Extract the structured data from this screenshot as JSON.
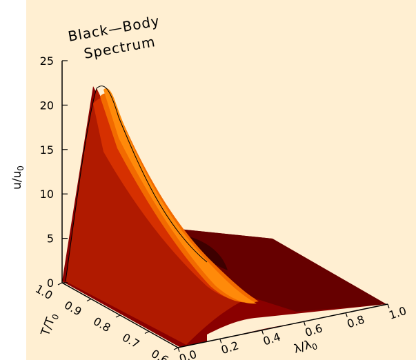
{
  "chart_data": {
    "type": "surface",
    "title": [
      "Black—Body",
      "Spectrum"
    ],
    "zlabel": "u/u",
    "zlabel_sub": "0",
    "xlabel": "λ/λ",
    "xlabel_sub": "0",
    "ylabel": "T/T",
    "ylabel_sub": "0",
    "zlim": [
      0,
      25
    ],
    "z_ticks": [
      "0",
      "5",
      "10",
      "15",
      "20",
      "25"
    ],
    "xlim": [
      0.0,
      1.0
    ],
    "x_ticks": [
      "0.0",
      "0.2",
      "0.4",
      "0.6",
      "0.8",
      "1.0"
    ],
    "ylim": [
      0.6,
      1.0
    ],
    "y_ticks": [
      "0.6",
      "0.7",
      "0.8",
      "0.9",
      "1.0"
    ],
    "peak_value": 22,
    "contour_colors": [
      "#3d0000",
      "#660000",
      "#8a0000",
      "#b01a00",
      "#d63000",
      "#f26a00",
      "#ff8a0a"
    ],
    "background_color": "#ffefd2"
  }
}
